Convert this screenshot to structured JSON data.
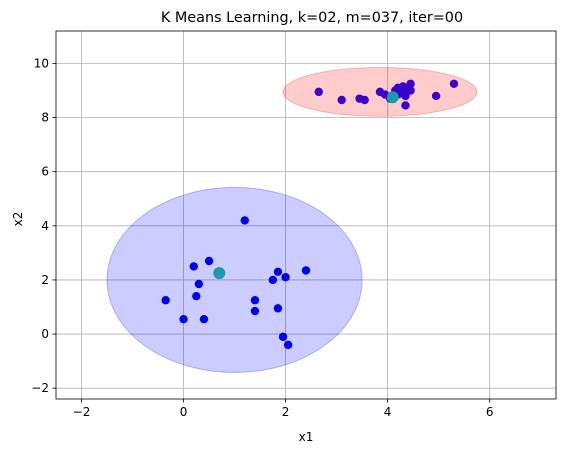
{
  "chart_data": {
    "type": "scatter",
    "title": "K Means Learning, k=02, m=037, iter=00",
    "xlabel": "x1",
    "ylabel": "x2",
    "xlim": [
      -2.5,
      7.3
    ],
    "ylim": [
      -2.4,
      11.2
    ],
    "xticks": [
      -2,
      0,
      2,
      4,
      6
    ],
    "yticks": [
      -2,
      0,
      2,
      4,
      6,
      8,
      10
    ],
    "grid": true,
    "colors": {
      "cluster_0_point": "#0000ee",
      "cluster_1_point": "#3a00cc",
      "centroid": "#1a9aaa",
      "cluster_0_region_fill": "#0000ff",
      "cluster_0_region_edge": "#0000ff",
      "cluster_1_region_fill": "#ff0000",
      "cluster_1_region_edge": "#ff0000"
    },
    "clusters": [
      {
        "region": {
          "cx": 1.0,
          "cy": 2.0,
          "rx": 2.5,
          "ry": 3.42
        },
        "centroid": {
          "x": 0.7,
          "y": 2.25
        },
        "points": [
          [
            1.2,
            4.2
          ],
          [
            0.2,
            2.5
          ],
          [
            0.5,
            2.7
          ],
          [
            0.3,
            1.85
          ],
          [
            0.25,
            1.4
          ],
          [
            -0.35,
            1.25
          ],
          [
            0.0,
            0.55
          ],
          [
            0.4,
            0.55
          ],
          [
            1.85,
            2.3
          ],
          [
            1.75,
            2.0
          ],
          [
            2.0,
            2.1
          ],
          [
            2.4,
            2.35
          ],
          [
            1.4,
            1.25
          ],
          [
            1.4,
            0.85
          ],
          [
            1.85,
            0.95
          ],
          [
            1.95,
            -0.1
          ],
          [
            2.05,
            -0.4
          ]
        ]
      },
      {
        "region": {
          "cx": 3.85,
          "cy": 8.95,
          "rx": 1.9,
          "ry": 0.9
        },
        "centroid": {
          "x": 4.1,
          "y": 8.75
        },
        "points": [
          [
            2.65,
            8.95
          ],
          [
            3.1,
            8.65
          ],
          [
            3.45,
            8.7
          ],
          [
            3.55,
            8.65
          ],
          [
            3.85,
            8.95
          ],
          [
            3.95,
            8.85
          ],
          [
            4.2,
            9.1
          ],
          [
            4.3,
            9.15
          ],
          [
            4.45,
            9.25
          ],
          [
            4.15,
            9.0
          ],
          [
            4.25,
            8.9
          ],
          [
            4.35,
            8.8
          ],
          [
            4.35,
            8.45
          ],
          [
            4.95,
            8.8
          ],
          [
            5.3,
            9.25
          ],
          [
            4.05,
            8.7
          ],
          [
            4.4,
            9.05
          ],
          [
            4.3,
            8.95
          ],
          [
            4.2,
            8.85
          ],
          [
            4.45,
            9.0
          ]
        ]
      }
    ]
  }
}
